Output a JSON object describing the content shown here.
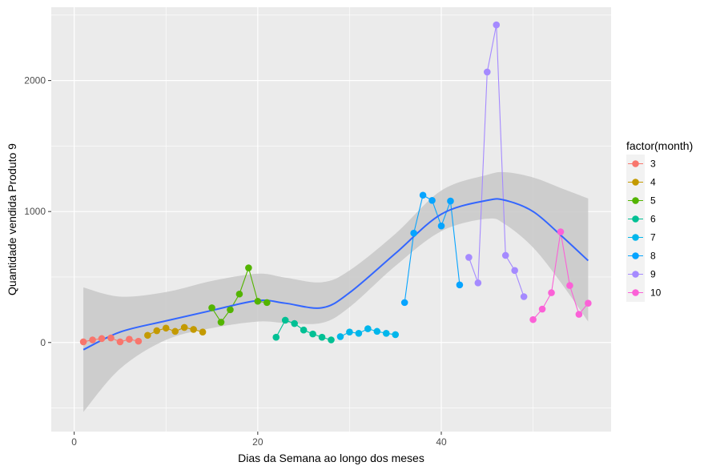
{
  "chart_data": {
    "type": "line",
    "xlabel": "Dias da Semana ao longo dos meses",
    "ylabel": "Quantidade vendida Produto 9",
    "xlim": [
      -2.5,
      58.5
    ],
    "ylim": [
      -680,
      2560
    ],
    "xticks": [
      0,
      20,
      40
    ],
    "yticks": [
      0,
      1000,
      2000
    ],
    "legend": {
      "title": "factor(month)",
      "position": "right"
    },
    "colors": {
      "panel_background": "#ebebeb",
      "grid": "#ffffff",
      "smooth_line": "#3366ff",
      "ribbon": "#c8c8c8"
    },
    "series": [
      {
        "name": "3",
        "color": "#F8766D",
        "x": [
          1,
          2,
          3,
          4,
          5,
          6,
          7
        ],
        "y": [
          5,
          20,
          30,
          35,
          5,
          25,
          10
        ]
      },
      {
        "name": "4",
        "color": "#C49A00",
        "x": [
          8,
          9,
          10,
          11,
          12,
          13,
          14
        ],
        "y": [
          55,
          90,
          110,
          85,
          115,
          100,
          80
        ]
      },
      {
        "name": "5",
        "color": "#53B400",
        "x": [
          15,
          16,
          17,
          18,
          19,
          20,
          21
        ],
        "y": [
          265,
          155,
          250,
          370,
          570,
          315,
          305
        ]
      },
      {
        "name": "6",
        "color": "#00C094",
        "x": [
          22,
          23,
          24,
          25,
          26,
          27,
          28
        ],
        "y": [
          40,
          170,
          145,
          95,
          65,
          40,
          20
        ]
      },
      {
        "name": "7",
        "color": "#00B6EB",
        "x": [
          29,
          30,
          31,
          32,
          33,
          34,
          35
        ],
        "y": [
          45,
          80,
          70,
          105,
          85,
          70,
          60
        ]
      },
      {
        "name": "8",
        "color": "#06A4FF",
        "x": [
          36,
          37,
          38,
          39,
          40,
          41,
          42
        ],
        "y": [
          305,
          835,
          1125,
          1085,
          890,
          1080,
          440
        ]
      },
      {
        "name": "9",
        "color": "#A58AFF",
        "x": [
          43,
          44,
          45,
          46,
          47,
          48,
          49
        ],
        "y": [
          650,
          455,
          2065,
          2425,
          665,
          550,
          350
        ]
      },
      {
        "name": "10",
        "color": "#FB61D7",
        "x": [
          50,
          51,
          52,
          53,
          54,
          55,
          56
        ],
        "y": [
          175,
          255,
          380,
          845,
          435,
          215,
          300
        ]
      }
    ],
    "smooth": {
      "x": [
        1,
        5,
        10,
        15,
        20,
        23,
        27,
        30,
        35,
        40,
        45,
        47,
        50,
        53,
        56
      ],
      "y": [
        -55,
        80,
        165,
        245,
        320,
        300,
        265,
        380,
        680,
        980,
        1085,
        1085,
        1000,
        820,
        625
      ],
      "lower": [
        -530,
        -200,
        20,
        110,
        160,
        150,
        150,
        270,
        585,
        850,
        945,
        900,
        725,
        460,
        160
      ],
      "upper": [
        420,
        350,
        385,
        470,
        525,
        495,
        460,
        550,
        830,
        1160,
        1280,
        1300,
        1260,
        1180,
        1100
      ]
    }
  }
}
